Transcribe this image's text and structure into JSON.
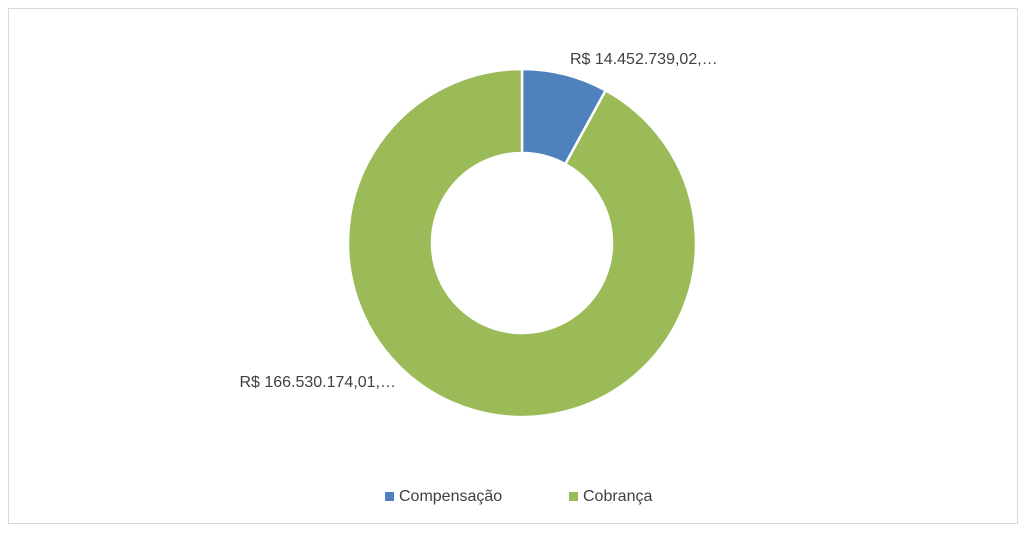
{
  "chart_data": {
    "type": "donut",
    "categories": [
      "Compensação",
      "Cobrança"
    ],
    "values": [
      14452739.02,
      166530174.01
    ],
    "value_labels": [
      "R$ 14.452.739,02,…",
      "R$ 166.530.174,01,…"
    ],
    "colors": [
      "#4f81bd",
      "#9bbb59"
    ],
    "legend": "bottom"
  }
}
